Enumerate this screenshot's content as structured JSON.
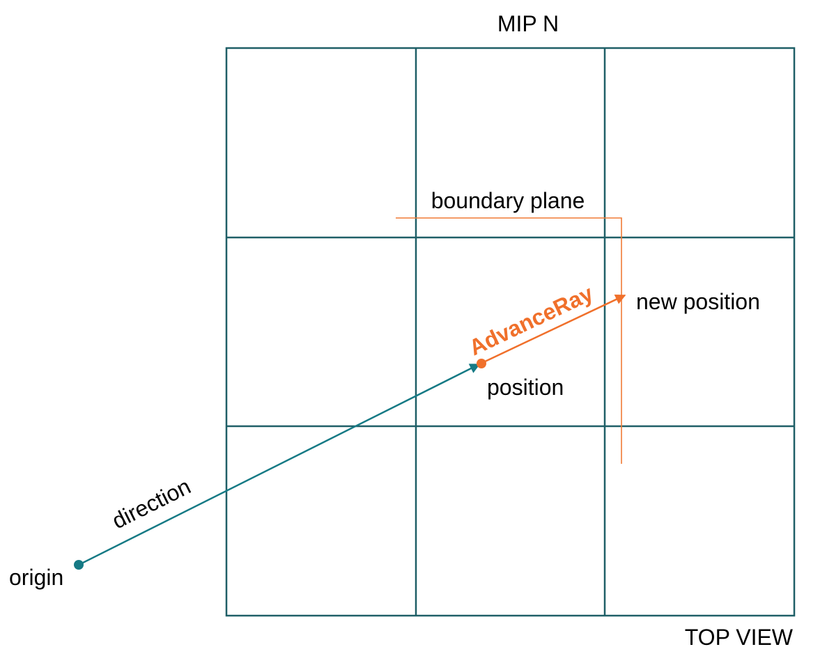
{
  "labels": {
    "title": "MIP N",
    "view": "TOP VIEW",
    "boundary_plane": "boundary plane",
    "new_position": "new position",
    "advance_ray": "AdvanceRay",
    "position": "position",
    "direction": "direction",
    "origin": "origin"
  },
  "colors": {
    "grid": "#1f5f67",
    "ray": "#167a85",
    "advance": "#f0702b",
    "text": "#000000"
  },
  "grid": {
    "rows": 3,
    "cols": 3
  }
}
